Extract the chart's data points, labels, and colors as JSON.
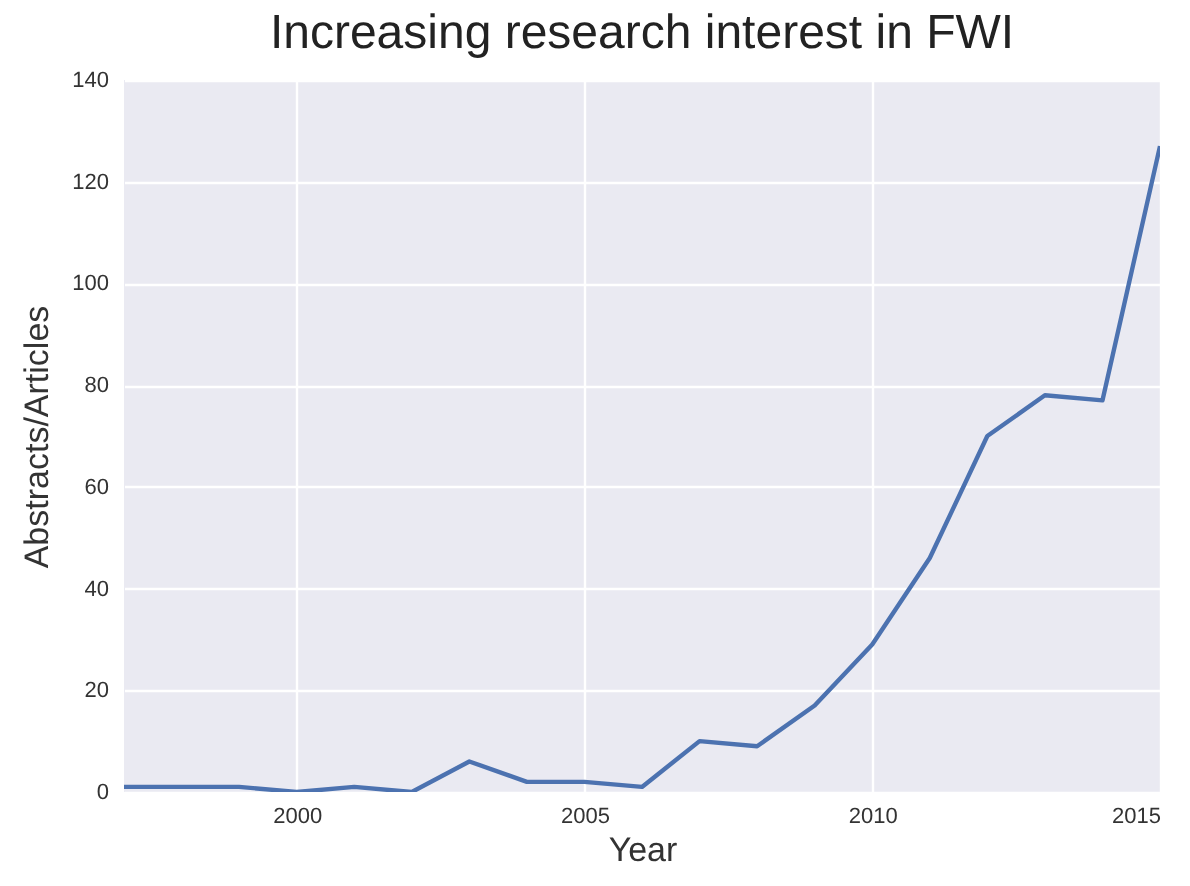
{
  "chart_data": {
    "type": "line",
    "title": "Increasing research interest in FWI",
    "xlabel": "Year",
    "ylabel": "Abstracts/Articles",
    "x": [
      1997,
      1998,
      1999,
      2000,
      2001,
      2002,
      2003,
      2004,
      2005,
      2006,
      2007,
      2008,
      2009,
      2010,
      2011,
      2012,
      2013,
      2014,
      2015
    ],
    "series": [
      {
        "color": "#4c72b0",
        "values": [
          1,
          1,
          1,
          0,
          1,
          0,
          6,
          2,
          2,
          1,
          10,
          9,
          17,
          29,
          46,
          70,
          78,
          77,
          127
        ]
      }
    ],
    "xlim": [
      1997,
      2015
    ],
    "xticks": [
      2000,
      2005,
      2010,
      2015
    ],
    "ylim": [
      0,
      140
    ],
    "yticks": [
      0,
      20,
      40,
      60,
      80,
      100,
      120,
      140
    ],
    "grid": true,
    "line_style": "solid",
    "marker": "none"
  }
}
